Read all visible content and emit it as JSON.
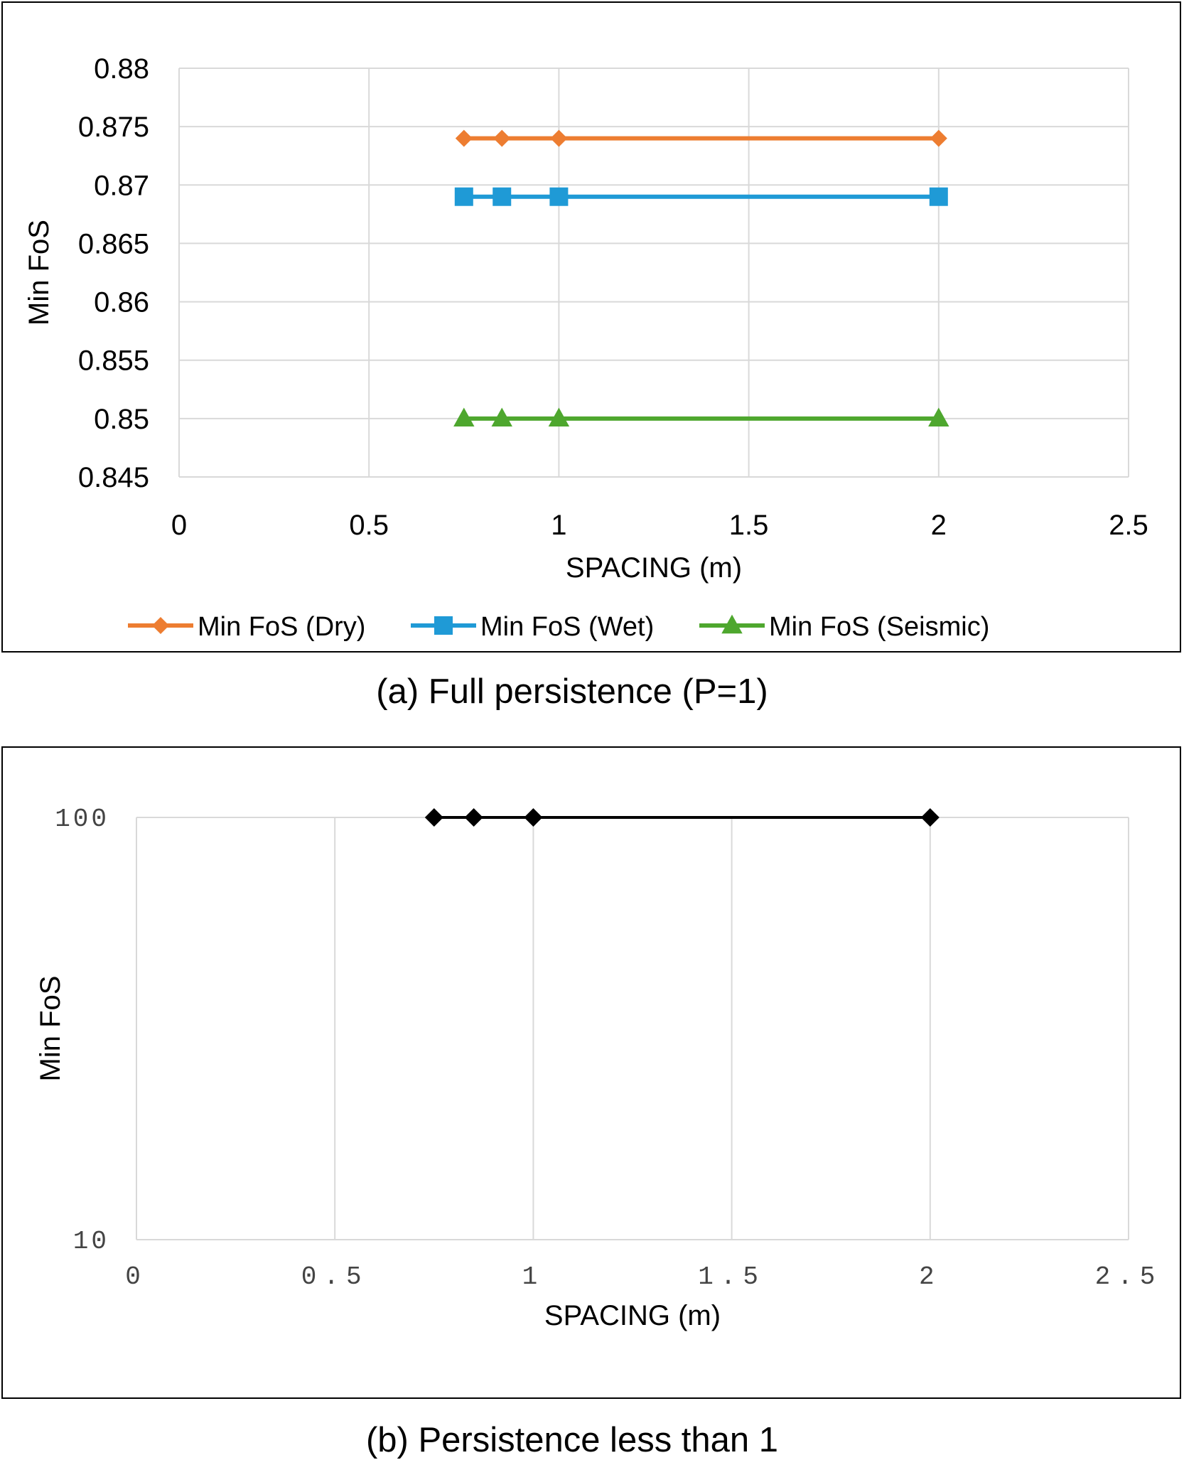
{
  "chart_data": [
    {
      "type": "line",
      "caption": "(a) Full persistence (P=1)",
      "xlabel": "SPACING (m)",
      "ylabel": "Min FoS",
      "xlim": [
        0,
        2.5
      ],
      "ylim": [
        0.845,
        0.88
      ],
      "xticks": [
        "0",
        "0.5",
        "1",
        "1.5",
        "2",
        "2.5"
      ],
      "yticks": [
        "0.88",
        "0.875",
        "0.87",
        "0.865",
        "0.86",
        "0.855",
        "0.85",
        "0.845"
      ],
      "grid": true,
      "legend_position": "bottom",
      "series": [
        {
          "name": "Min FoS (Dry)",
          "color": "#ED7D31",
          "marker": "diamond",
          "x": [
            0.75,
            0.85,
            1,
            2
          ],
          "y": [
            0.874,
            0.874,
            0.874,
            0.874
          ]
        },
        {
          "name": "Min FoS (Wet)",
          "color": "#1F9AD6",
          "marker": "square",
          "x": [
            0.75,
            0.85,
            1,
            2
          ],
          "y": [
            0.869,
            0.869,
            0.869,
            0.869
          ]
        },
        {
          "name": "Min FoS (Seismic)",
          "color": "#4EA72E",
          "marker": "triangle",
          "x": [
            0.75,
            0.85,
            1,
            2
          ],
          "y": [
            0.85,
            0.85,
            0.85,
            0.85
          ]
        }
      ]
    },
    {
      "type": "line",
      "caption": "(b) Persistence less than 1",
      "xlabel": "SPACING (m)",
      "ylabel": "Min FoS",
      "xlim": [
        0,
        2.5
      ],
      "ylim": [
        10,
        100
      ],
      "yscale": "log",
      "xticks": [
        "0",
        "0.5",
        "1",
        "1.5",
        "2",
        "2.5"
      ],
      "yticks": [
        "100",
        "10"
      ],
      "grid": true,
      "series": [
        {
          "name": "Min FoS",
          "color": "#000000",
          "marker": "diamond",
          "x": [
            0.75,
            0.85,
            1,
            2
          ],
          "y": [
            100,
            100,
            100,
            100
          ]
        }
      ]
    }
  ]
}
